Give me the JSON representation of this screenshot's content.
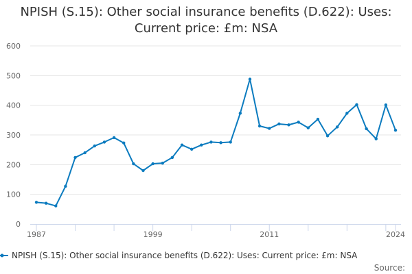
{
  "chart_data": {
    "type": "line",
    "title_line1": "NPISH (S.15): Other social insurance benefits (D.622): Uses:",
    "title_line2": "Current price: £m: NSA",
    "xlabel": "",
    "ylabel": "",
    "xlim": [
      1987,
      2024
    ],
    "ylim": [
      0,
      600
    ],
    "y_ticks": [
      0,
      100,
      200,
      300,
      400,
      500,
      600
    ],
    "x_tick_labels": [
      "1987",
      "1999",
      "2011",
      "2024"
    ],
    "x_tick_years": [
      1987,
      1999,
      2011,
      2024
    ],
    "series": [
      {
        "name": "NPISH (S.15): Other social insurance benefits (D.622): Uses: Current price: £m: NSA",
        "color": "#0b7bbf",
        "x": [
          1987,
          1988,
          1989,
          1990,
          1991,
          1992,
          1993,
          1994,
          1995,
          1996,
          1997,
          1998,
          1999,
          2000,
          2001,
          2002,
          2003,
          2004,
          2005,
          2006,
          2007,
          2008,
          2009,
          2010,
          2011,
          2012,
          2013,
          2014,
          2015,
          2016,
          2017,
          2018,
          2019,
          2020,
          2021,
          2022,
          2023,
          2024
        ],
        "values": [
          73,
          70,
          61,
          127,
          224,
          240,
          263,
          276,
          291,
          273,
          203,
          180,
          203,
          205,
          224,
          266,
          252,
          266,
          276,
          274,
          276,
          373,
          488,
          330,
          322,
          337,
          334,
          343,
          324,
          353,
          297,
          327,
          373,
          402,
          321,
          287,
          401,
          316
        ]
      }
    ],
    "legend_position": "bottom",
    "source_label": "Source:"
  }
}
